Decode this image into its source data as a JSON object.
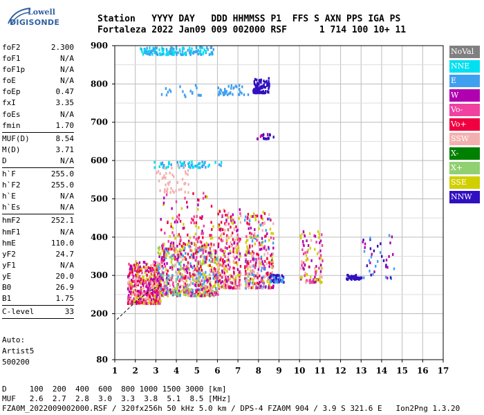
{
  "logo": {
    "line1": "Lowell",
    "line2": "DIGISONDE"
  },
  "header": {
    "line1": "Station   YYYY DAY   DDD HHMMSS P1  FFS S AXN PPS IGA PS",
    "line2": "Fortaleza 2022 Jan09 009 002000 RSF      1 714 100 10+ 11"
  },
  "params": {
    "group1": [
      {
        "label": "foF2",
        "value": "2.300"
      },
      {
        "label": "foF1",
        "value": "N/A"
      },
      {
        "label": "foF1p",
        "value": "N/A"
      },
      {
        "label": "foE",
        "value": "N/A"
      },
      {
        "label": "foEp",
        "value": "0.47"
      },
      {
        "label": "fxI",
        "value": "3.35"
      },
      {
        "label": "foEs",
        "value": "N/A"
      },
      {
        "label": "fmin",
        "value": "1.70"
      }
    ],
    "group2": [
      {
        "label": "MUF(D)",
        "value": "8.54"
      },
      {
        "label": "M(D)",
        "value": "3.71"
      },
      {
        "label": "D",
        "value": "N/A"
      }
    ],
    "group3": [
      {
        "label": "h`F",
        "value": "255.0"
      },
      {
        "label": "h`F2",
        "value": "255.0"
      },
      {
        "label": "h`E",
        "value": "N/A"
      },
      {
        "label": "h`Es",
        "value": "N/A"
      }
    ],
    "group4": [
      {
        "label": "hmF2",
        "value": "252.1"
      },
      {
        "label": "hmF1",
        "value": "N/A"
      },
      {
        "label": "hmE",
        "value": "110.0"
      },
      {
        "label": "yF2",
        "value": "24.7"
      },
      {
        "label": "yF1",
        "value": "N/A"
      },
      {
        "label": "yE",
        "value": "20.0"
      },
      {
        "label": "B0",
        "value": "26.9"
      },
      {
        "label": "B1",
        "value": "1.75"
      }
    ],
    "group5": [
      {
        "label": "C-level",
        "value": "33"
      }
    ]
  },
  "auto": {
    "line1": "Auto:",
    "line2": "Artist5",
    "line3": "500200"
  },
  "footer": {
    "line1": "D     100  200  400  600  800 1000 1500 3000 [km]",
    "line2": "MUF   2.6  2.7  2.8  3.0  3.3  3.8  5.1  8.5 [MHz]",
    "line3": "FZA0M_2022009002000.RSF / 320fx256h 50 kHz 5.0 km / DPS-4 FZA0M 904 / 3.9 S 321.6 E   Ion2Png 1.3.20"
  },
  "legend": [
    {
      "label": "NoVal",
      "color": "#808080"
    },
    {
      "label": "NNE",
      "color": "#00e0f0"
    },
    {
      "label": "E",
      "color": "#40a0f0"
    },
    {
      "label": "W",
      "color": "#b000b0"
    },
    {
      "label": "Vo-",
      "color": "#f040a0"
    },
    {
      "label": "Vo+",
      "color": "#f00040"
    },
    {
      "label": "SSW",
      "color": "#f4b0b0"
    },
    {
      "label": "X-",
      "color": "#008000"
    },
    {
      "label": "X+",
      "color": "#90d070"
    },
    {
      "label": "SSE",
      "color": "#d0d000"
    },
    {
      "label": "NNW",
      "color": "#3010c0"
    }
  ],
  "chart_data": {
    "type": "scatter",
    "xlim": [
      1,
      17
    ],
    "ylim": [
      80,
      900
    ],
    "x_ticks": [
      "1",
      "2",
      "3",
      "4",
      "5",
      "6",
      "7",
      "8",
      "9",
      "10",
      "11",
      "12",
      "13",
      "14",
      "15",
      "16",
      "17"
    ],
    "y_ticks": [
      "80",
      "200",
      "300",
      "400",
      "500",
      "600",
      "700",
      "800",
      "900"
    ],
    "grid": true,
    "clusters": [
      {
        "fmin": 1.6,
        "fmax": 3.2,
        "hmin": 230,
        "hmax": 340,
        "n": 520,
        "colors": [
          "#f00040",
          "#b000b0",
          "#f040a0",
          "#d0d000",
          "#f4b0b0"
        ]
      },
      {
        "fmin": 3.0,
        "fmax": 6.0,
        "hmin": 250,
        "hmax": 380,
        "n": 700,
        "colors": [
          "#d0d000",
          "#f4b0b0",
          "#b000b0",
          "#f040a0",
          "#f00040",
          "#90d070",
          "#40a0f0"
        ]
      },
      {
        "fmin": 3.2,
        "fmax": 5.8,
        "hmin": 380,
        "hmax": 520,
        "n": 120,
        "colors": [
          "#f040a0",
          "#b000b0",
          "#d0d000",
          "#f00040"
        ]
      },
      {
        "fmin": 6.0,
        "fmax": 7.1,
        "hmin": 270,
        "hmax": 480,
        "n": 260,
        "colors": [
          "#d0d000",
          "#b000b0",
          "#f00040",
          "#f040a0",
          "#f4b0b0"
        ]
      },
      {
        "fmin": 7.3,
        "fmax": 8.7,
        "hmin": 270,
        "hmax": 470,
        "n": 300,
        "colors": [
          "#d0d000",
          "#b000b0",
          "#f00040",
          "#40a0f0",
          "#f4b0b0",
          "#f040a0"
        ]
      },
      {
        "fmin": 8.5,
        "fmax": 9.2,
        "hmin": 285,
        "hmax": 305,
        "n": 60,
        "colors": [
          "#40a0f0",
          "#3010c0"
        ]
      },
      {
        "fmin": 10.0,
        "fmax": 11.1,
        "hmin": 285,
        "hmax": 420,
        "n": 110,
        "colors": [
          "#d0d000",
          "#f4b0b0",
          "#b000b0",
          "#f040a0"
        ]
      },
      {
        "fmin": 12.2,
        "fmax": 13.0,
        "hmin": 293,
        "hmax": 305,
        "n": 40,
        "colors": [
          "#3010c0"
        ]
      },
      {
        "fmin": 13.0,
        "fmax": 14.6,
        "hmin": 295,
        "hmax": 410,
        "n": 40,
        "colors": [
          "#3010c0",
          "#b000b0",
          "#40a0f0"
        ]
      },
      {
        "fmin": 7.7,
        "fmax": 8.5,
        "hmin": 780,
        "hmax": 820,
        "n": 90,
        "colors": [
          "#3010c0"
        ]
      },
      {
        "fmin": 6.0,
        "fmax": 7.5,
        "hmin": 775,
        "hmax": 800,
        "n": 40,
        "colors": [
          "#40a0f0"
        ]
      },
      {
        "fmin": 7.9,
        "fmax": 8.7,
        "hmin": 660,
        "hmax": 675,
        "n": 20,
        "colors": [
          "#3010c0",
          "#b000b0"
        ]
      },
      {
        "fmin": 2.2,
        "fmax": 5.8,
        "hmin": 880,
        "hmax": 900,
        "n": 150,
        "colors": [
          "#40a0f0",
          "#00e0f0"
        ]
      },
      {
        "fmin": 2.8,
        "fmax": 6.2,
        "hmin": 585,
        "hmax": 600,
        "n": 60,
        "colors": [
          "#40a0f0",
          "#00e0f0"
        ]
      },
      {
        "fmin": 3.0,
        "fmax": 4.6,
        "hmin": 520,
        "hmax": 590,
        "n": 45,
        "colors": [
          "#f4b0b0"
        ]
      },
      {
        "fmin": 3.0,
        "fmax": 5.2,
        "hmin": 770,
        "hmax": 800,
        "n": 18,
        "colors": [
          "#40a0f0"
        ]
      }
    ],
    "trace": [
      [
        1.1,
        185
      ],
      [
        1.6,
        210
      ],
      [
        2.2,
        240
      ],
      [
        2.8,
        262
      ],
      [
        3.3,
        278
      ]
    ]
  }
}
